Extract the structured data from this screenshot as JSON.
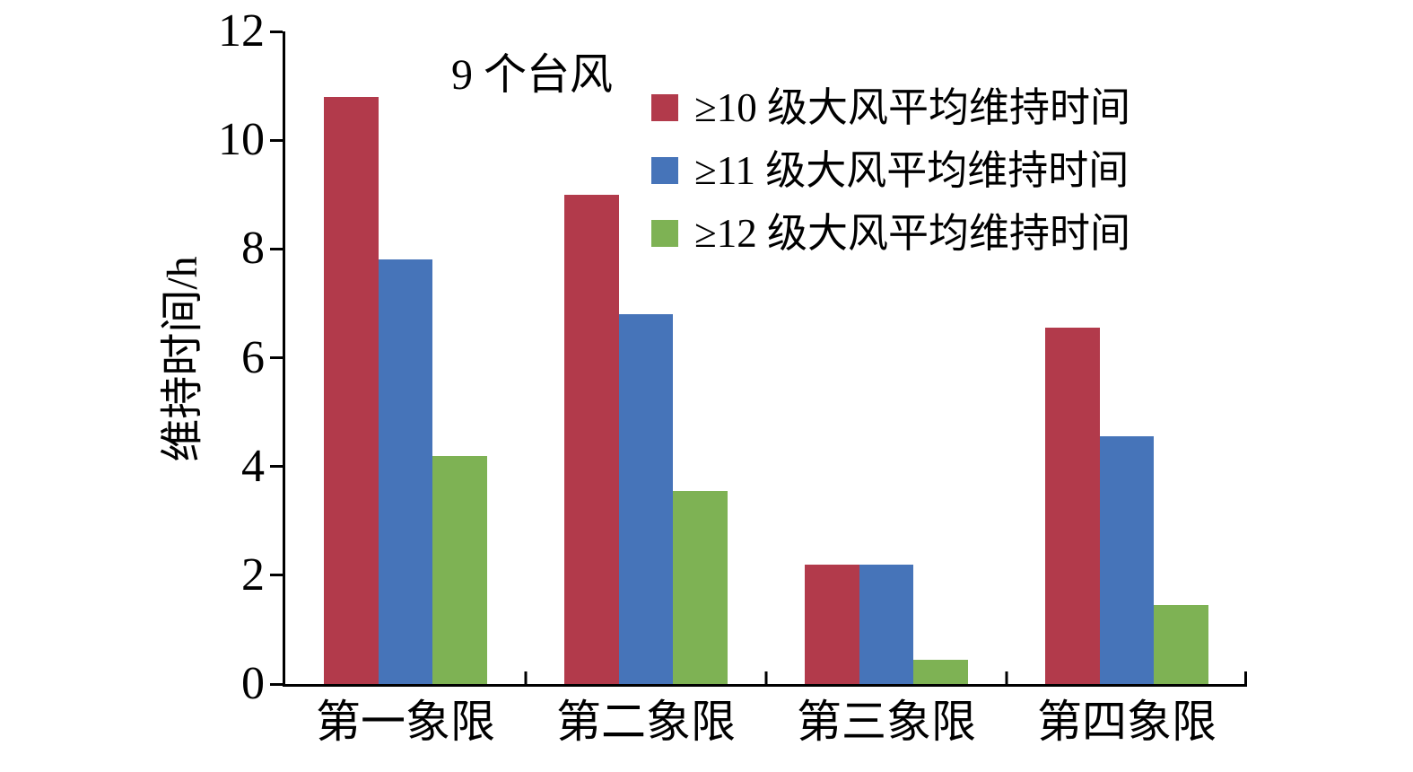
{
  "chart_data": {
    "type": "bar",
    "title": "9 个台风",
    "ylabel": "维持时间/h",
    "xlabel": "",
    "categories": [
      "第一象限",
      "第二象限",
      "第三象限",
      "第四象限"
    ],
    "series": [
      {
        "name": "≥10 级大风平均维持时间",
        "color": "#b23a4b",
        "values": [
          10.8,
          9.0,
          2.2,
          6.55
        ]
      },
      {
        "name": "≥11 级大风平均维持时间",
        "color": "#4674b9",
        "values": [
          7.8,
          6.8,
          2.2,
          4.55
        ]
      },
      {
        "name": "≥12 级大风平均维持时间",
        "color": "#7eb254",
        "values": [
          4.2,
          3.55,
          0.45,
          1.45
        ]
      }
    ],
    "ylim": [
      0,
      12
    ],
    "yticks": [
      0,
      2,
      4,
      6,
      8,
      10,
      12
    ],
    "grid": false,
    "legend_position": "top-right",
    "axis_color": "#000000",
    "background_color": "#ffffff"
  }
}
